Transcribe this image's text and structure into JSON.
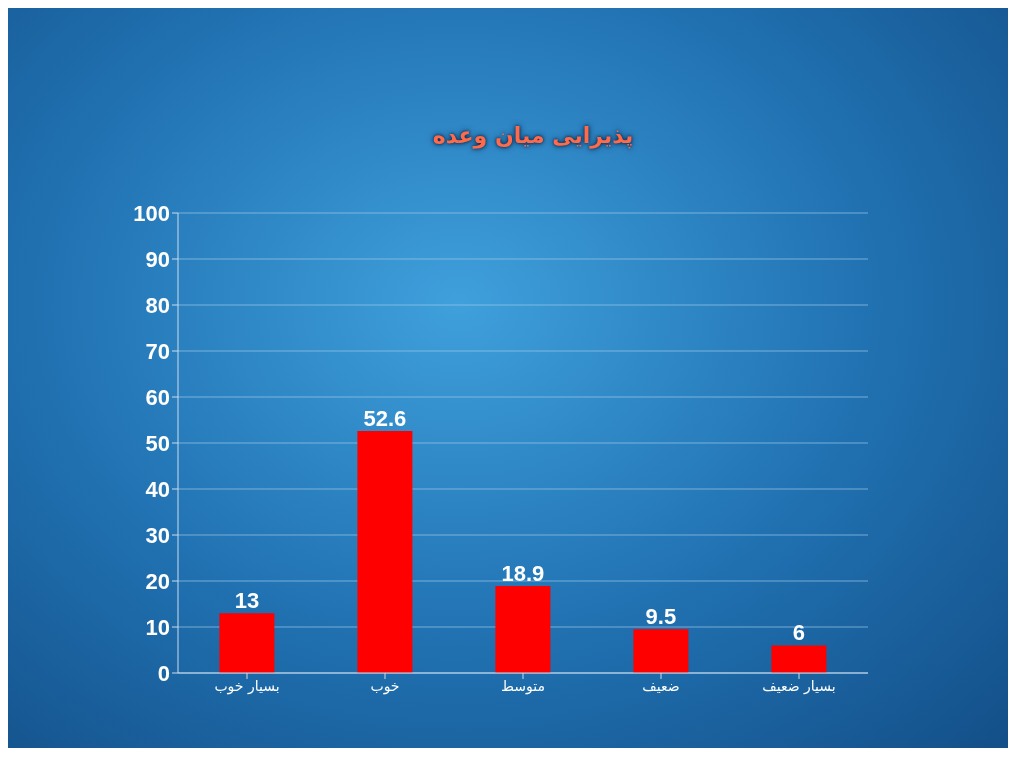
{
  "chart_data": {
    "type": "bar",
    "title": "پذیرایی میان وعده",
    "categories": [
      "بسیار خوب",
      "خوب",
      "متوسط",
      "ضعیف",
      "بسیار ضعیف"
    ],
    "values": [
      13,
      52.6,
      18.9,
      9.5,
      6
    ],
    "color": "#ff0000",
    "ylim": [
      0,
      100
    ],
    "yticks": [
      0,
      10,
      20,
      30,
      40,
      50,
      60,
      70,
      80,
      90,
      100
    ],
    "grid": "y",
    "data_labels": true
  }
}
